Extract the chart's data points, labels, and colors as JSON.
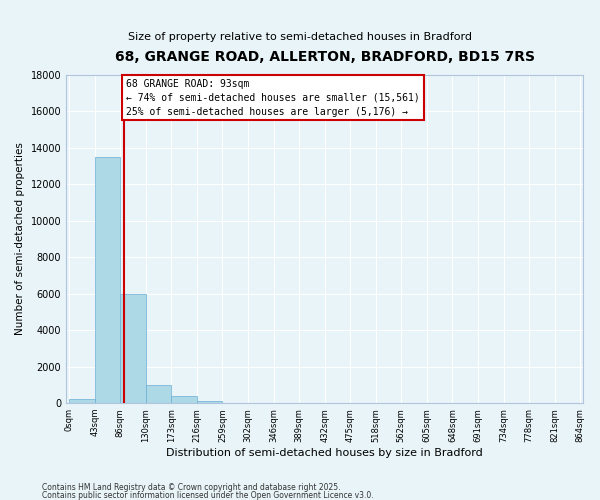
{
  "title": "68, GRANGE ROAD, ALLERTON, BRADFORD, BD15 7RS",
  "subtitle": "Size of property relative to semi-detached houses in Bradford",
  "xlabel": "Distribution of semi-detached houses by size in Bradford",
  "ylabel": "Number of semi-detached properties",
  "property_label": "68 GRANGE ROAD: 93sqm",
  "annotation_left": "← 74% of semi-detached houses are smaller (15,561)",
  "annotation_right": "25% of semi-detached houses are larger (5,176) →",
  "property_sqm": 93,
  "bin_width": 43,
  "bar_starts": [
    0,
    43,
    86,
    129,
    172,
    215,
    258,
    301,
    344,
    387,
    430,
    473,
    516,
    559,
    602,
    645,
    688,
    731,
    774,
    817
  ],
  "bar_labels": [
    "0sqm",
    "43sqm",
    "86sqm",
    "130sqm",
    "173sqm",
    "216sqm",
    "259sqm",
    "302sqm",
    "346sqm",
    "389sqm",
    "432sqm",
    "475sqm",
    "518sqm",
    "562sqm",
    "605sqm",
    "648sqm",
    "691sqm",
    "734sqm",
    "778sqm",
    "821sqm",
    "864sqm"
  ],
  "bar_heights": [
    200,
    13500,
    6000,
    1000,
    380,
    100,
    20,
    10,
    5,
    3,
    2,
    1,
    0,
    0,
    0,
    0,
    0,
    0,
    0,
    0
  ],
  "bar_color": "#add8e6",
  "bar_edge_color": "#6baed6",
  "line_color": "#cc0000",
  "ylim": [
    0,
    18000
  ],
  "yticks": [
    0,
    2000,
    4000,
    6000,
    8000,
    10000,
    12000,
    14000,
    16000,
    18000
  ],
  "background_color": "#e8f4f8",
  "grid_color": "#ffffff",
  "annotation_box_facecolor": "#ffffff",
  "annotation_box_edgecolor": "#cc0000",
  "footer1": "Contains HM Land Registry data © Crown copyright and database right 2025.",
  "footer2": "Contains public sector information licensed under the Open Government Licence v3.0."
}
